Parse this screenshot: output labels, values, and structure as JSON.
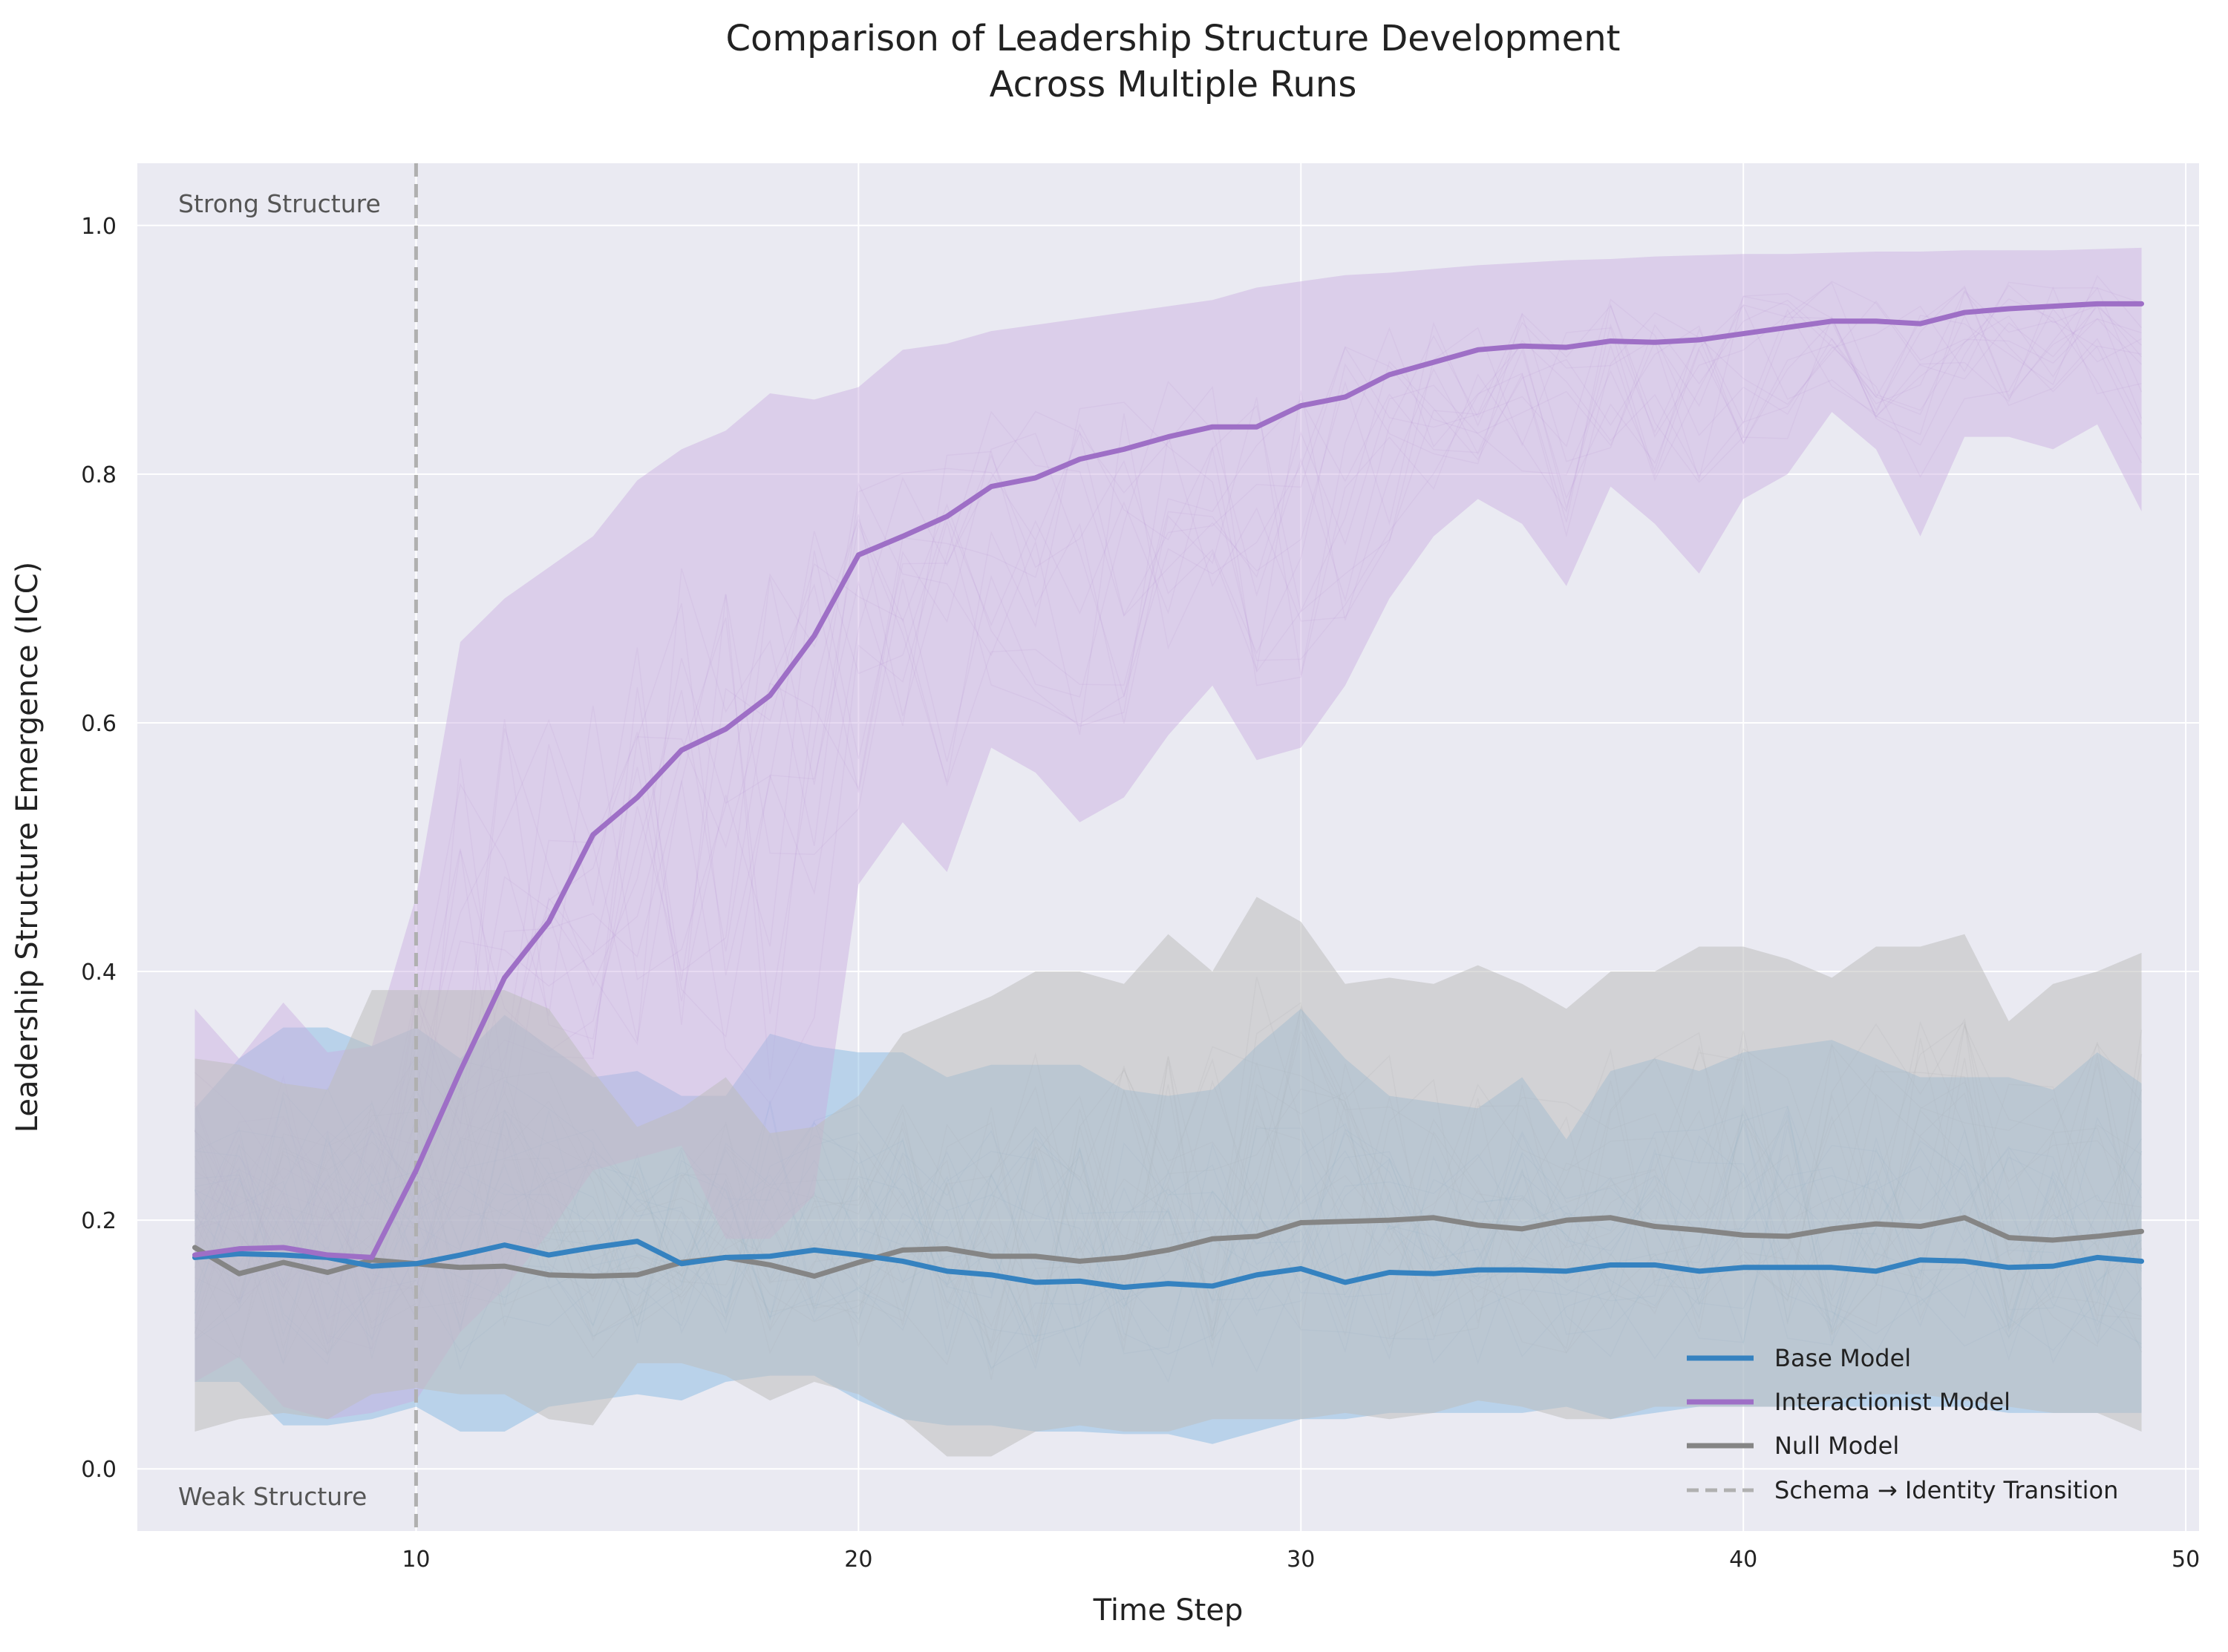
{
  "chart_data": {
    "type": "line",
    "title_lines": [
      "Comparison of Leadership Structure Development",
      "Across Multiple Runs"
    ],
    "xlabel": "Time Step",
    "ylabel": "Leadership Structure Emergence (ICC)",
    "xlim": [
      3.7,
      50.3
    ],
    "ylim": [
      -0.05,
      1.05
    ],
    "x_ticks": [
      10,
      20,
      30,
      40,
      50
    ],
    "y_ticks": [
      0.0,
      0.2,
      0.4,
      0.6,
      0.8,
      1.0
    ],
    "grid": true,
    "legend_position": "lower-right",
    "x": [
      5,
      6,
      7,
      8,
      9,
      10,
      11,
      12,
      13,
      14,
      15,
      16,
      17,
      18,
      19,
      20,
      21,
      22,
      23,
      24,
      25,
      26,
      27,
      28,
      29,
      30,
      31,
      32,
      33,
      34,
      35,
      36,
      37,
      38,
      39,
      40,
      41,
      42,
      43,
      44,
      45,
      46,
      47,
      48,
      49
    ],
    "series": [
      {
        "name": "Base Model",
        "color": "#3582c0",
        "band_color": "#7fb6e0",
        "values": [
          0.17,
          0.173,
          0.172,
          0.17,
          0.163,
          0.165,
          0.172,
          0.18,
          0.172,
          0.178,
          0.183,
          0.165,
          0.17,
          0.171,
          0.176,
          0.172,
          0.167,
          0.159,
          0.156,
          0.15,
          0.151,
          0.146,
          0.149,
          0.147,
          0.156,
          0.161,
          0.15,
          0.158,
          0.157,
          0.16,
          0.16,
          0.159,
          0.164,
          0.164,
          0.159,
          0.162,
          0.162,
          0.162,
          0.159,
          0.168,
          0.167,
          0.162,
          0.163,
          0.17,
          0.167
        ],
        "upper": [
          0.29,
          0.33,
          0.355,
          0.355,
          0.34,
          0.355,
          0.33,
          0.365,
          0.34,
          0.315,
          0.32,
          0.3,
          0.3,
          0.35,
          0.34,
          0.335,
          0.335,
          0.315,
          0.325,
          0.325,
          0.325,
          0.305,
          0.3,
          0.305,
          0.34,
          0.37,
          0.33,
          0.3,
          0.295,
          0.29,
          0.315,
          0.265,
          0.32,
          0.33,
          0.32,
          0.335,
          0.34,
          0.345,
          0.33,
          0.315,
          0.315,
          0.315,
          0.305,
          0.335,
          0.31
        ],
        "lower": [
          0.07,
          0.07,
          0.035,
          0.035,
          0.04,
          0.05,
          0.03,
          0.03,
          0.05,
          0.055,
          0.06,
          0.055,
          0.07,
          0.075,
          0.075,
          0.055,
          0.04,
          0.035,
          0.035,
          0.03,
          0.03,
          0.028,
          0.028,
          0.02,
          0.03,
          0.04,
          0.04,
          0.045,
          0.045,
          0.045,
          0.045,
          0.05,
          0.04,
          0.045,
          0.05,
          0.05,
          0.05,
          0.05,
          0.05,
          0.05,
          0.05,
          0.045,
          0.045,
          0.045,
          0.045
        ]
      },
      {
        "name": "Interactionist Model",
        "color": "#9e6fc6",
        "band_color": "#c9aee0",
        "values": [
          0.172,
          0.177,
          0.178,
          0.172,
          0.17,
          0.24,
          0.32,
          0.395,
          0.44,
          0.51,
          0.54,
          0.578,
          0.595,
          0.622,
          0.67,
          0.735,
          0.75,
          0.766,
          0.79,
          0.797,
          0.812,
          0.82,
          0.83,
          0.838,
          0.838,
          0.855,
          0.862,
          0.88,
          0.89,
          0.9,
          0.903,
          0.902,
          0.907,
          0.906,
          0.908,
          0.913,
          0.918,
          0.923,
          0.923,
          0.921,
          0.93,
          0.933,
          0.935,
          0.937,
          0.937
        ],
        "upper": [
          0.37,
          0.33,
          0.375,
          0.335,
          0.34,
          0.46,
          0.665,
          0.7,
          0.725,
          0.75,
          0.795,
          0.82,
          0.835,
          0.865,
          0.86,
          0.87,
          0.9,
          0.905,
          0.915,
          0.92,
          0.925,
          0.93,
          0.935,
          0.94,
          0.95,
          0.955,
          0.96,
          0.962,
          0.965,
          0.968,
          0.97,
          0.972,
          0.973,
          0.975,
          0.976,
          0.977,
          0.977,
          0.978,
          0.979,
          0.979,
          0.98,
          0.98,
          0.98,
          0.981,
          0.982
        ],
        "lower": [
          0.07,
          0.09,
          0.05,
          0.04,
          0.045,
          0.055,
          0.11,
          0.145,
          0.19,
          0.24,
          0.25,
          0.26,
          0.185,
          0.185,
          0.22,
          0.47,
          0.52,
          0.48,
          0.58,
          0.56,
          0.52,
          0.54,
          0.59,
          0.63,
          0.57,
          0.58,
          0.63,
          0.7,
          0.75,
          0.78,
          0.76,
          0.71,
          0.79,
          0.76,
          0.72,
          0.78,
          0.8,
          0.85,
          0.82,
          0.75,
          0.83,
          0.83,
          0.82,
          0.84,
          0.77
        ]
      },
      {
        "name": "Null Model",
        "color": "#858585",
        "band_color": "#bdbdbd",
        "values": [
          0.178,
          0.157,
          0.166,
          0.158,
          0.168,
          0.165,
          0.162,
          0.163,
          0.156,
          0.155,
          0.156,
          0.166,
          0.17,
          0.164,
          0.155,
          0.166,
          0.176,
          0.177,
          0.171,
          0.171,
          0.167,
          0.17,
          0.176,
          0.185,
          0.187,
          0.198,
          0.199,
          0.2,
          0.202,
          0.196,
          0.193,
          0.2,
          0.202,
          0.195,
          0.192,
          0.188,
          0.187,
          0.193,
          0.197,
          0.195,
          0.202,
          0.186,
          0.184,
          0.187,
          0.191
        ],
        "upper": [
          0.33,
          0.325,
          0.31,
          0.305,
          0.385,
          0.385,
          0.385,
          0.385,
          0.37,
          0.32,
          0.275,
          0.29,
          0.315,
          0.27,
          0.275,
          0.3,
          0.35,
          0.365,
          0.38,
          0.4,
          0.4,
          0.39,
          0.43,
          0.4,
          0.46,
          0.44,
          0.39,
          0.395,
          0.39,
          0.405,
          0.39,
          0.37,
          0.4,
          0.4,
          0.42,
          0.42,
          0.41,
          0.395,
          0.42,
          0.42,
          0.43,
          0.36,
          0.39,
          0.4,
          0.415
        ],
        "lower": [
          0.03,
          0.04,
          0.045,
          0.04,
          0.06,
          0.065,
          0.06,
          0.06,
          0.04,
          0.035,
          0.085,
          0.085,
          0.075,
          0.055,
          0.07,
          0.06,
          0.04,
          0.01,
          0.01,
          0.03,
          0.035,
          0.03,
          0.03,
          0.04,
          0.04,
          0.04,
          0.045,
          0.04,
          0.045,
          0.055,
          0.05,
          0.04,
          0.04,
          0.05,
          0.05,
          0.05,
          0.05,
          0.055,
          0.06,
          0.06,
          0.055,
          0.05,
          0.045,
          0.045,
          0.03
        ]
      }
    ],
    "transition": {
      "x": 10,
      "label": "Schema → Identity Transition",
      "color": "#b0b0b0"
    },
    "annotations": {
      "top": "Strong Structure",
      "bottom": "Weak Structure"
    }
  }
}
